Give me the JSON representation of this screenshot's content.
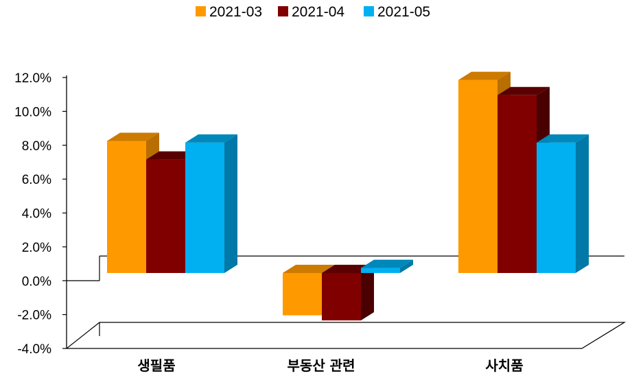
{
  "chart_data": {
    "type": "bar",
    "categories": [
      "생필품",
      "부동산 관련",
      "사치품"
    ],
    "series": [
      {
        "name": "2021-03",
        "values": [
          7.8,
          -2.5,
          11.4
        ],
        "color": "#FF9900",
        "top_color": "#CC7A00",
        "side_color": "#B86E00"
      },
      {
        "name": "2021-04",
        "values": [
          6.7,
          -2.8,
          10.5
        ],
        "color": "#800000",
        "top_color": "#5A0000",
        "side_color": "#4A0000"
      },
      {
        "name": "2021-05",
        "values": [
          7.7,
          0.3,
          7.7
        ],
        "color": "#00B0F0",
        "top_color": "#0088BB",
        "side_color": "#0078A8"
      }
    ],
    "yticks": [
      "12.0%",
      "10.0%",
      "8.0%",
      "6.0%",
      "4.0%",
      "2.0%",
      "0.0%",
      "-2.0%",
      "-4.0%"
    ],
    "ylim": [
      -4,
      12
    ],
    "legend_position": "top",
    "grid": false
  }
}
